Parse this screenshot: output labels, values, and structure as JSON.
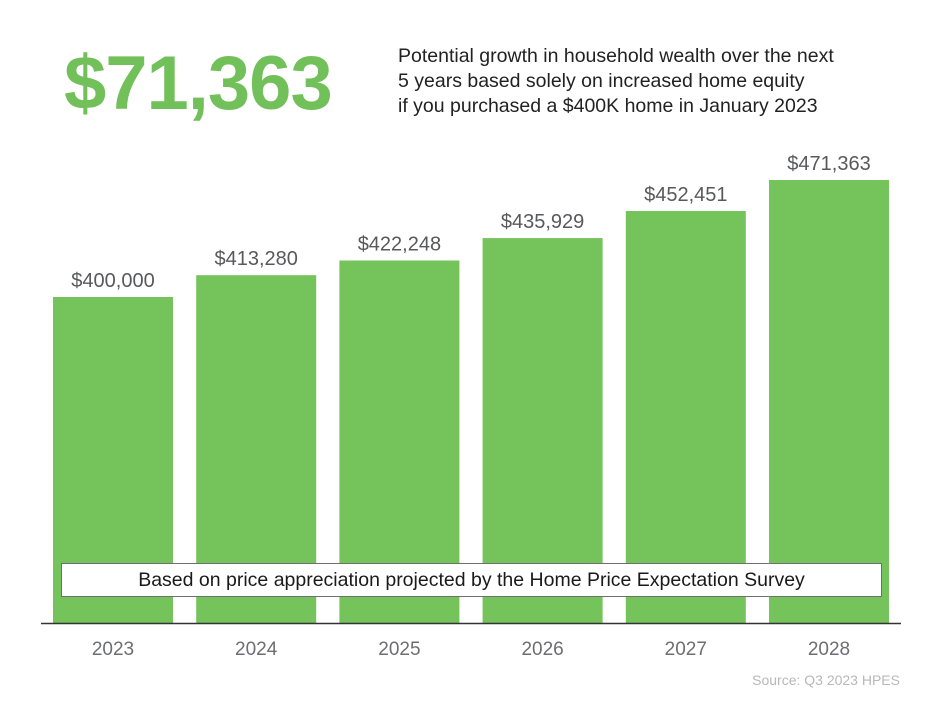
{
  "headline": {
    "amount": "$71,363",
    "description_lines": [
      "Potential growth in household wealth over the next",
      "5 years based solely on increased home equity",
      "if you purchased a $400K home in January 2023"
    ]
  },
  "note": "Based on price appreciation projected by the Home Price Expectation Survey",
  "source": "Source: Q3 2023 HPES",
  "colors": {
    "bar": "#74c35b",
    "headline": "#72c05a",
    "value_label": "#58595b",
    "axis_label": "#6d6e70",
    "axis_line": "#333333"
  },
  "chart_data": {
    "type": "bar",
    "title": "",
    "xlabel": "",
    "ylabel": "",
    "categories": [
      "2023",
      "2024",
      "2025",
      "2026",
      "2027",
      "2028"
    ],
    "values": [
      400000,
      413280,
      422248,
      435929,
      452451,
      471363
    ],
    "value_labels": [
      "$400,000",
      "$413,280",
      "$422,248",
      "$435,929",
      "$452,451",
      "$471,363"
    ],
    "ylim": [
      0,
      471363
    ],
    "grid": false,
    "legend": "none"
  }
}
